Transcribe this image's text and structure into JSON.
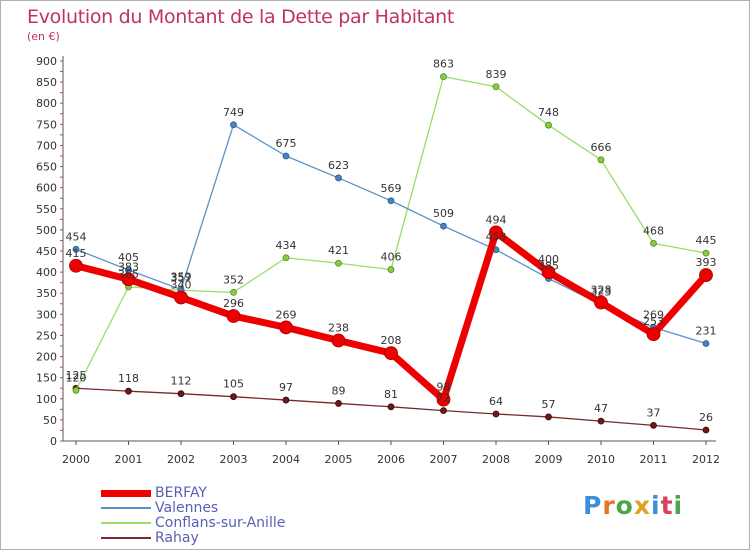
{
  "header": {
    "title": "Evolution du Montant de la Dette par Habitant",
    "unit": "(en €)"
  },
  "chart_data": {
    "type": "line",
    "title": "Evolution du Montant de la Dette par Habitant",
    "subtitle": "(en €)",
    "xlabel": "",
    "ylabel": "",
    "x": [
      "2000",
      "2001",
      "2002",
      "2003",
      "2004",
      "2005",
      "2006",
      "2007",
      "2008",
      "2009",
      "2010",
      "2011",
      "2012"
    ],
    "ylim": [
      0,
      900
    ],
    "yticks": [
      0,
      50,
      100,
      150,
      200,
      250,
      300,
      350,
      400,
      450,
      500,
      550,
      600,
      650,
      700,
      750,
      800,
      850,
      900
    ],
    "grid": false,
    "legend_position": "bottom-left",
    "series": [
      {
        "name": "BERFAY",
        "color": "#ee0000",
        "values": [
          415,
          383,
          340,
          296,
          269,
          238,
          208,
          98,
          494,
          400,
          328,
          253,
          393
        ]
      },
      {
        "name": "Valennes",
        "color": "#5a92c8",
        "values": [
          454,
          405,
          359,
          749,
          675,
          623,
          569,
          509,
          453,
          385,
          323,
          269,
          231
        ]
      },
      {
        "name": "Conflans-sur-Anille",
        "color": "#99dd66",
        "values": [
          120,
          365,
          357,
          352,
          434,
          421,
          406,
          863,
          839,
          748,
          666,
          468,
          445
        ]
      },
      {
        "name": "Rahay",
        "color": "#7a2a2a",
        "values": [
          125,
          118,
          112,
          105,
          97,
          89,
          81,
          72,
          64,
          57,
          47,
          37,
          26
        ]
      }
    ]
  },
  "branding": {
    "logo_text": "Proxiti",
    "letter_colors": [
      "#3b8fd9",
      "#e8742a",
      "#4aa64a",
      "#e0a020",
      "#3b8fd9",
      "#d9415c",
      "#4aa64a"
    ]
  }
}
